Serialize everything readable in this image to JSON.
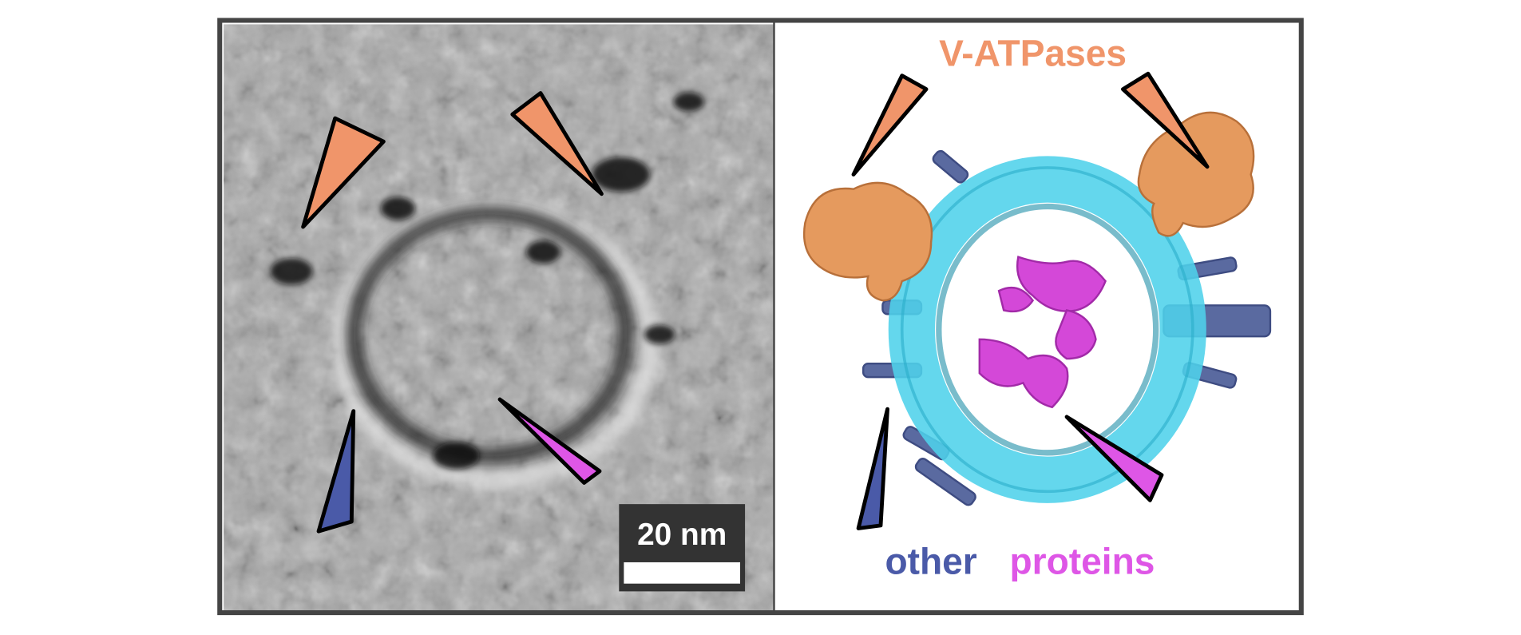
{
  "scale_bar": "20 nm",
  "legend": {
    "v_atpases": "V-ATPases",
    "other": "other",
    "proteins": "proteins"
  }
}
